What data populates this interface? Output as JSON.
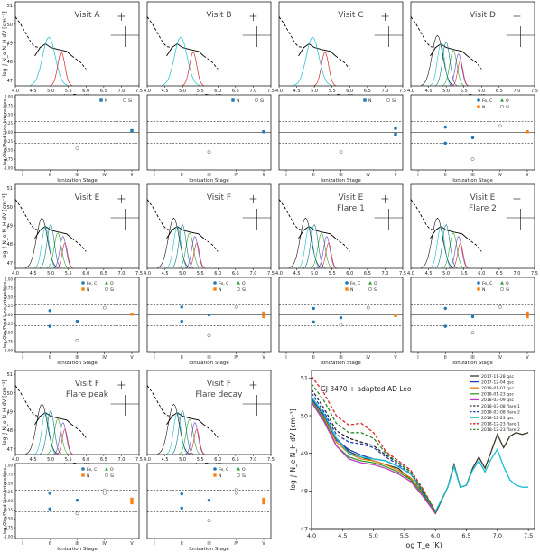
{
  "figure": {
    "upper_ylabel": "log ∫ N_e N_H dV [cm⁻³]",
    "upper_xlabel": "log T_e (K)",
    "lower_ylabel": "log Obs/Pred Line Intensities",
    "lower_xlabel": "Ionization Stage",
    "upper_xticks": [
      "4.0",
      "4.5",
      "5.0",
      "5.5",
      "6.0",
      "6.5",
      "7.0",
      "7.5"
    ],
    "upper_yticks": [
      "47",
      "48",
      "49",
      "50",
      "51"
    ],
    "lower_yticks": [
      "-1.00",
      "-0.75",
      "-0.50",
      "-0.25",
      "0.00",
      "0.25",
      "0.50",
      "0.75",
      "1.00"
    ],
    "stages": [
      "I",
      "II",
      "III",
      "IV",
      "V"
    ]
  },
  "panels": [
    {
      "title": "Visit A",
      "legend": [
        "N",
        "Si"
      ],
      "peaks": 2
    },
    {
      "title": "Visit B",
      "legend": [
        "N",
        "Si"
      ],
      "peaks": 2
    },
    {
      "title": "Visit C",
      "legend": [
        "N",
        "Si"
      ],
      "peaks": 2
    },
    {
      "title": "Visit D",
      "legend": [
        "Fe, C",
        "O",
        "N",
        "Si"
      ],
      "peaks": 5
    },
    {
      "title": "Visit E",
      "legend": [
        "Fe, C",
        "O",
        "N",
        "Si"
      ],
      "peaks": 5
    },
    {
      "title": "Visit F",
      "legend": [
        "Fe, C",
        "O",
        "N",
        "Si"
      ],
      "peaks": 5
    },
    {
      "title": "Visit E\nFlare 1",
      "legend": [
        "Fe, C",
        "O",
        "N",
        "Si"
      ],
      "peaks": 5
    },
    {
      "title": "Visit E\nFlare 2",
      "legend": [
        "Fe, C",
        "O",
        "N",
        "Si"
      ],
      "peaks": 5
    },
    {
      "title": "Visit F\nFlare peak",
      "legend": [
        "Fe, C",
        "O",
        "N",
        "Si"
      ],
      "peaks": 5
    },
    {
      "title": "Visit F\nFlare decay",
      "legend": [
        "Fe, C",
        "O",
        "N",
        "Si"
      ],
      "peaks": 5
    }
  ],
  "colors": {
    "fe_c": "#1f77b4",
    "o": "#2ca02c",
    "n": "#ff7f0e",
    "si": "#888888",
    "teal": "#17becf",
    "red": "#d62728",
    "purple": "#6a3dcc",
    "green": "#2ca02c"
  },
  "chart_data": [
    {
      "type": "scatter",
      "panel": "Visit A",
      "ylim": [
        -1.0,
        1.0
      ],
      "series": [
        {
          "name": "N",
          "x": [
            5
          ],
          "y": [
            0.05
          ]
        },
        {
          "name": "Si",
          "x": [
            3
          ],
          "y": [
            -0.45
          ]
        }
      ]
    },
    {
      "type": "scatter",
      "panel": "Visit B",
      "ylim": [
        -1.0,
        1.0
      ],
      "series": [
        {
          "name": "N",
          "x": [
            5
          ],
          "y": [
            0.02
          ]
        },
        {
          "name": "Si",
          "x": [
            3
          ],
          "y": [
            -0.55
          ]
        }
      ]
    },
    {
      "type": "scatter",
      "panel": "Visit C",
      "ylim": [
        -1.0,
        1.0
      ],
      "series": [
        {
          "name": "N",
          "x": [
            5,
            5
          ],
          "y": [
            0.12,
            -0.05
          ]
        },
        {
          "name": "Si",
          "x": [
            3
          ],
          "y": [
            -0.55
          ]
        }
      ]
    },
    {
      "type": "scatter",
      "panel": "Visit D",
      "ylim": [
        -1.0,
        1.0
      ],
      "series": [
        {
          "name": "Fe, C",
          "x": [
            2,
            2,
            3
          ],
          "y": [
            0.15,
            -0.3,
            -0.15
          ]
        },
        {
          "name": "N",
          "x": [
            5
          ],
          "y": [
            0.02
          ]
        },
        {
          "name": "Si",
          "x": [
            3,
            4
          ],
          "y": [
            -0.75,
            0.18
          ]
        }
      ]
    },
    {
      "type": "scatter",
      "panel": "Visit E",
      "ylim": [
        -1.0,
        1.0
      ],
      "series": [
        {
          "name": "Fe, C",
          "x": [
            2,
            2,
            3
          ],
          "y": [
            0.12,
            -0.32,
            -0.18
          ]
        },
        {
          "name": "N",
          "x": [
            5
          ],
          "y": [
            0.02
          ]
        },
        {
          "name": "Si",
          "x": [
            3,
            4
          ],
          "y": [
            -0.72,
            0.2
          ]
        }
      ]
    },
    {
      "type": "scatter",
      "panel": "Visit F",
      "ylim": [
        -1.0,
        1.0
      ],
      "series": [
        {
          "name": "Fe, C",
          "x": [
            2,
            2,
            3
          ],
          "y": [
            0.22,
            -0.18,
            0.0
          ]
        },
        {
          "name": "N",
          "x": [
            5,
            5
          ],
          "y": [
            0.05,
            -0.05
          ]
        },
        {
          "name": "Si",
          "x": [
            3,
            4
          ],
          "y": [
            -0.58,
            0.22
          ]
        }
      ]
    },
    {
      "type": "scatter",
      "panel": "Visit E Flare 1",
      "ylim": [
        -1.0,
        1.0
      ],
      "series": [
        {
          "name": "Fe, C",
          "x": [
            2,
            2,
            3
          ],
          "y": [
            0.18,
            -0.2,
            -0.08
          ]
        },
        {
          "name": "N",
          "x": [
            5
          ],
          "y": [
            -0.02
          ]
        },
        {
          "name": "Si",
          "x": [
            3,
            4
          ],
          "y": [
            -0.28,
            0.2
          ]
        }
      ]
    },
    {
      "type": "scatter",
      "panel": "Visit E Flare 2",
      "ylim": [
        -1.0,
        1.0
      ],
      "series": [
        {
          "name": "Fe, C",
          "x": [
            2,
            2,
            3
          ],
          "y": [
            0.18,
            -0.32,
            -0.05
          ]
        },
        {
          "name": "N",
          "x": [
            5,
            5
          ],
          "y": [
            0.05,
            -0.05
          ]
        },
        {
          "name": "Si",
          "x": [
            3,
            4
          ],
          "y": [
            -0.5,
            0.22
          ]
        }
      ]
    },
    {
      "type": "scatter",
      "panel": "Visit F Flare peak",
      "ylim": [
        -1.0,
        1.0
      ],
      "series": [
        {
          "name": "Fe, C",
          "x": [
            2,
            2,
            3
          ],
          "y": [
            0.22,
            -0.22,
            0.02
          ]
        },
        {
          "name": "N",
          "x": [
            5,
            5
          ],
          "y": [
            0.05,
            -0.05
          ]
        },
        {
          "name": "Si",
          "x": [
            3,
            4,
            4
          ],
          "y": [
            -0.35,
            0.3,
            0.22
          ]
        }
      ]
    },
    {
      "type": "scatter",
      "panel": "Visit F Flare decay",
      "ylim": [
        -1.0,
        1.0
      ],
      "series": [
        {
          "name": "Fe, C",
          "x": [
            2,
            2,
            3
          ],
          "y": [
            0.2,
            -0.2,
            0.02
          ]
        },
        {
          "name": "N",
          "x": [
            5,
            5
          ],
          "y": [
            0.05,
            -0.05
          ]
        },
        {
          "name": "Si",
          "x": [
            3,
            4,
            4
          ],
          "y": [
            -0.55,
            0.32,
            0.22
          ]
        }
      ]
    },
    {
      "type": "line",
      "title": "GJ 3470 + adapted AD Leo",
      "xlabel": "log T_e (K)",
      "ylabel": "log ∫ N_e N_H dV [cm⁻³]",
      "xlim": [
        4.0,
        7.6
      ],
      "ylim": [
        47.0,
        51.2
      ],
      "xticks": [
        "4.0",
        "4.5",
        "5.0",
        "5.5",
        "6.0",
        "6.5",
        "7.0",
        "7.5"
      ],
      "yticks": [
        "47",
        "48",
        "49",
        "50",
        "51"
      ],
      "legend_position": "top-right",
      "series": [
        {
          "name": "2017-11-28 qsc",
          "color": "#3a3a2a",
          "dash": false,
          "x": [
            4.0,
            4.2,
            4.4,
            4.6,
            4.8,
            5.0,
            5.2,
            5.4,
            5.6,
            5.8,
            6.0,
            6.2,
            6.3,
            6.4,
            6.5,
            6.6,
            6.7,
            6.8,
            6.9,
            7.0,
            7.1,
            7.2,
            7.3,
            7.4,
            7.5
          ],
          "y": [
            50.5,
            50.0,
            49.4,
            49.05,
            48.9,
            48.8,
            48.7,
            48.6,
            48.3,
            47.9,
            47.4,
            48.1,
            48.7,
            48.1,
            48.15,
            48.6,
            48.9,
            48.6,
            49.05,
            49.5,
            49.15,
            49.45,
            49.55,
            49.5,
            49.55
          ]
        },
        {
          "name": "2017-12-04 qsc",
          "color": "#1f3fbf",
          "dash": false,
          "x": [
            4.0,
            4.2,
            4.4,
            4.6,
            4.8,
            5.0,
            5.2,
            5.4,
            5.6,
            5.8,
            6.0
          ],
          "y": [
            50.45,
            50.0,
            49.35,
            49.1,
            48.95,
            48.85,
            48.8,
            48.65,
            48.45,
            48.0,
            47.45
          ]
        },
        {
          "name": "2018-01-07 qsc",
          "color": "#e07b12",
          "dash": false,
          "x": [
            4.0,
            4.2,
            4.4,
            4.6,
            4.8,
            5.0,
            5.2,
            5.4,
            5.6,
            5.8,
            6.0
          ],
          "y": [
            50.4,
            49.95,
            49.3,
            49.0,
            48.85,
            48.8,
            48.7,
            48.55,
            48.35,
            47.95,
            47.45
          ]
        },
        {
          "name": "2018-01-23 qsc",
          "color": "#3a9a2a",
          "dash": false,
          "x": [
            4.0,
            4.2,
            4.4,
            4.6,
            4.8,
            5.0,
            5.2,
            5.4,
            5.6,
            5.8,
            6.0
          ],
          "y": [
            50.4,
            49.9,
            49.2,
            48.9,
            48.8,
            48.75,
            48.65,
            48.5,
            48.3,
            47.9,
            47.4
          ]
        },
        {
          "name": "2018-03-09 qsc",
          "color": "#c03cc0",
          "dash": false,
          "x": [
            4.0,
            4.2,
            4.4,
            4.6,
            4.8,
            5.0,
            5.2,
            5.4,
            5.6,
            5.8,
            6.0
          ],
          "y": [
            50.35,
            49.85,
            49.2,
            48.85,
            48.75,
            48.7,
            48.6,
            48.45,
            48.25,
            47.85,
            47.4
          ]
        },
        {
          "name": "2018-03-08 flare 1",
          "color": "#2a2a2a",
          "dash": true,
          "x": [
            4.0,
            4.2,
            4.4,
            4.6,
            4.8,
            5.0,
            5.2,
            5.4,
            5.6,
            5.8,
            6.0
          ],
          "y": [
            50.7,
            50.2,
            49.6,
            49.4,
            49.3,
            49.2,
            48.95,
            48.75,
            48.5,
            48.0,
            47.45
          ]
        },
        {
          "name": "2018-03-08 flare 2",
          "color": "#1f3fbf",
          "dash": true,
          "x": [
            4.0,
            4.2,
            4.4,
            4.6,
            4.8,
            5.0,
            5.2,
            5.4,
            5.6,
            5.8,
            6.0
          ],
          "y": [
            50.6,
            50.1,
            49.5,
            49.3,
            49.25,
            49.15,
            48.9,
            48.7,
            48.45,
            47.95,
            47.45
          ]
        },
        {
          "name": "2018-12-23 qsc",
          "color": "#17becf",
          "dash": false,
          "x": [
            4.0,
            4.2,
            4.4,
            4.6,
            4.8,
            5.0,
            5.2,
            5.4,
            5.6,
            5.8,
            6.0,
            6.2,
            6.3,
            6.4,
            6.5,
            6.6,
            6.7,
            6.8,
            6.9,
            7.0,
            7.1,
            7.2,
            7.3,
            7.4,
            7.5
          ],
          "y": [
            50.5,
            50.05,
            49.4,
            49.0,
            48.9,
            48.85,
            48.8,
            48.65,
            48.45,
            48.0,
            47.45,
            48.1,
            48.65,
            48.1,
            48.15,
            48.55,
            48.8,
            48.5,
            48.85,
            49.1,
            48.65,
            48.3,
            48.15,
            48.1,
            48.1
          ]
        },
        {
          "name": "2018-12-23 flare 1",
          "color": "#d62728",
          "dash": true,
          "x": [
            4.0,
            4.2,
            4.4,
            4.6,
            4.8,
            5.0,
            5.2,
            5.4,
            5.6,
            5.8,
            6.0
          ],
          "y": [
            51.05,
            50.6,
            50.0,
            49.75,
            49.8,
            49.55,
            49.05,
            48.8,
            48.55,
            48.05,
            47.45
          ]
        },
        {
          "name": "2018-12-23 flare 2",
          "color": "#2a8a2a",
          "dash": true,
          "x": [
            4.0,
            4.2,
            4.4,
            4.6,
            4.8,
            5.0,
            5.2,
            5.4,
            5.6,
            5.8,
            6.0
          ],
          "y": [
            50.85,
            50.4,
            49.8,
            49.55,
            49.55,
            49.4,
            49.0,
            48.75,
            48.5,
            48.0,
            47.45
          ]
        }
      ]
    }
  ]
}
